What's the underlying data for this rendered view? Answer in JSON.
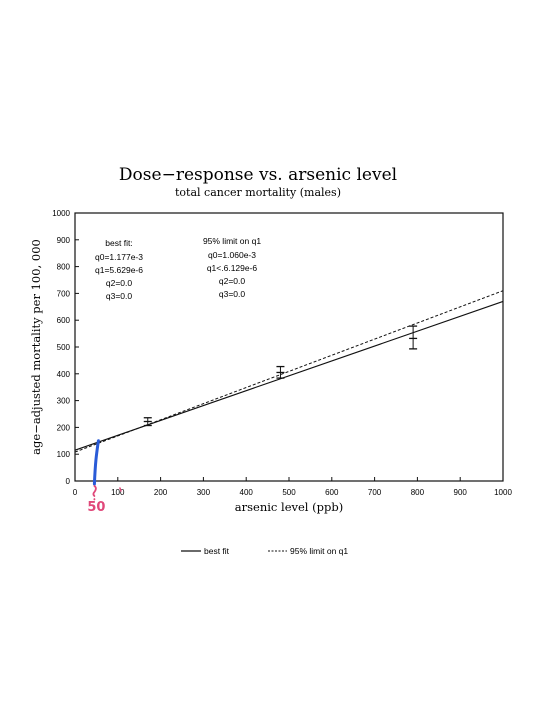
{
  "chart_data": {
    "type": "line",
    "title": "Dose−response vs. arsenic level",
    "subtitle": "total cancer mortality (males)",
    "xlabel": "arsenic level (ppb)",
    "ylabel": "age−adjusted mortality per 100, 000",
    "xlim": [
      0,
      1000
    ],
    "ylim": [
      0,
      1000
    ],
    "xticks": [
      "0",
      "100",
      "200",
      "300",
      "400",
      "500",
      "600",
      "700",
      "800",
      "900",
      "1000"
    ],
    "yticks": [
      "0",
      "100",
      "200",
      "300",
      "400",
      "500",
      "600",
      "700",
      "800",
      "900",
      "1000"
    ],
    "series": [
      {
        "name": "best fit",
        "style": "solid",
        "x": [
          0,
          1000
        ],
        "y": [
          115,
          670
        ]
      },
      {
        "name": "95% limit on q1",
        "style": "dashed",
        "x": [
          0,
          1000
        ],
        "y": [
          108,
          710
        ]
      }
    ],
    "error_bars": [
      {
        "x": 170,
        "y": 222,
        "low": 207,
        "high": 236
      },
      {
        "x": 480,
        "y": 405,
        "low": 384,
        "high": 427
      },
      {
        "x": 790,
        "y": 532,
        "low": 493,
        "high": 578
      }
    ],
    "annotations": {
      "best_fit": [
        "best fit:",
        "q0=1.177e-3",
        "q1=5.629e-6",
        "q2=0.0",
        "q3=0.0"
      ],
      "limit": [
        "95% limit on q1",
        "q0=1.060e-3",
        "q1<.6.129e-6",
        "q2=0.0",
        "q3=0.0"
      ]
    },
    "handwritten": {
      "text": "50",
      "x": 50
    },
    "legend_position": "bottom",
    "grid": false
  },
  "colors": {
    "axis": "#111111",
    "hand_blue": "#2a5bd7",
    "hand_pink": "#e0487a"
  }
}
